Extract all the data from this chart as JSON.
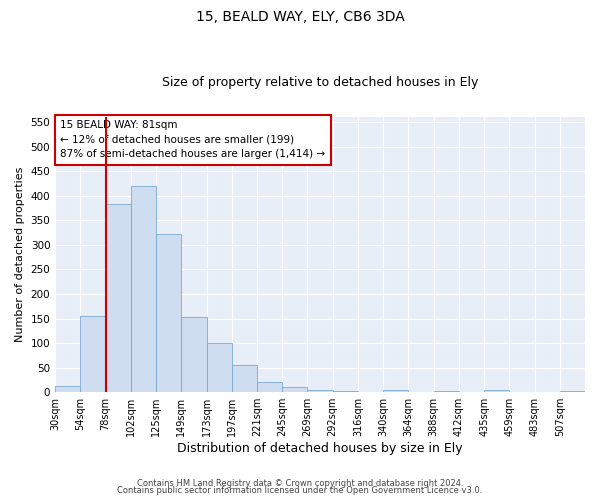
{
  "title1": "15, BEALD WAY, ELY, CB6 3DA",
  "title2": "Size of property relative to detached houses in Ely",
  "xlabel": "Distribution of detached houses by size in Ely",
  "ylabel": "Number of detached properties",
  "bar_values": [
    13,
    155,
    383,
    420,
    322,
    153,
    100,
    55,
    20,
    10,
    5,
    3,
    1,
    5,
    1,
    3,
    1,
    5,
    1,
    1,
    3
  ],
  "bar_labels": [
    "30sqm",
    "54sqm",
    "78sqm",
    "102sqm",
    "125sqm",
    "149sqm",
    "173sqm",
    "197sqm",
    "221sqm",
    "245sqm",
    "269sqm",
    "292sqm",
    "316sqm",
    "340sqm",
    "364sqm",
    "388sqm",
    "412sqm",
    "435sqm",
    "459sqm",
    "483sqm",
    "507sqm"
  ],
  "bar_color": "#cfddf0",
  "bar_edge_color": "#7aaad0",
  "annotation_text": "15 BEALD WAY: 81sqm\n← 12% of detached houses are smaller (199)\n87% of semi-detached houses are larger (1,414) →",
  "annotation_box_color": "#ffffff",
  "annotation_box_edge": "#cc0000",
  "vline_x": 2,
  "vline_color": "#cc0000",
  "ylim": [
    0,
    560
  ],
  "yticks": [
    0,
    50,
    100,
    150,
    200,
    250,
    300,
    350,
    400,
    450,
    500,
    550
  ],
  "footer1": "Contains HM Land Registry data © Crown copyright and database right 2024.",
  "footer2": "Contains public sector information licensed under the Open Government Licence v3.0.",
  "plot_bg_color": "#e8eef8",
  "title1_fontsize": 10,
  "title2_fontsize": 9,
  "annotation_fontsize": 7.5,
  "ylabel_fontsize": 8,
  "xlabel_fontsize": 9,
  "tick_fontsize": 7,
  "footer_fontsize": 6
}
